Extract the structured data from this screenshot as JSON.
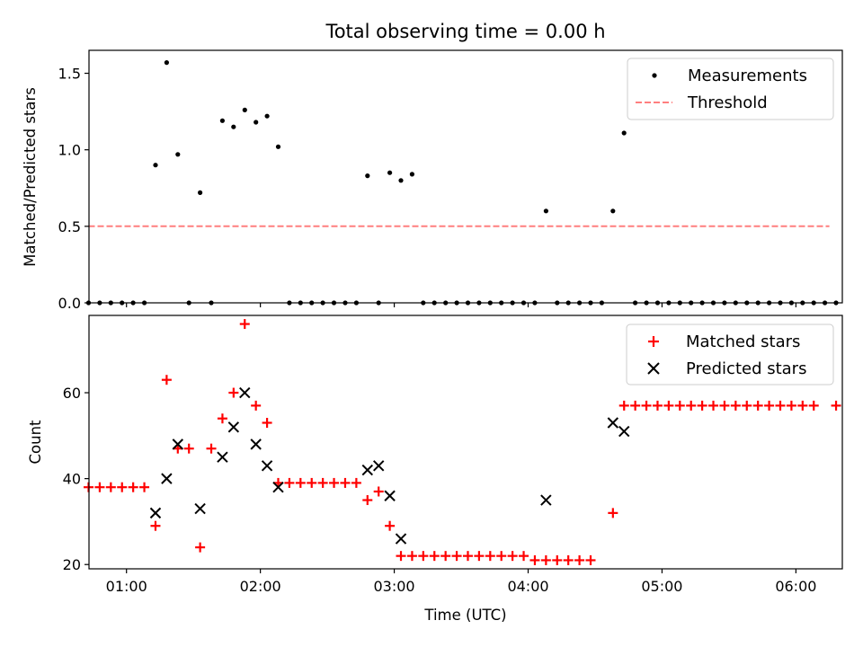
{
  "title": "Total observing time = 0.00 h",
  "xlabel": "Time (UTC)",
  "x_ticks": [
    "01:00",
    "02:00",
    "03:00",
    "04:00",
    "05:00",
    "06:00"
  ],
  "chart_data": [
    {
      "type": "scatter",
      "panel": "top",
      "ylabel": "Matched/Predicted stars",
      "xlim_min": [
        43.2,
        380.8
      ],
      "ylim": [
        0,
        1.65
      ],
      "y_ticks": [
        "0.0",
        "0.5",
        "1.0",
        "1.5"
      ],
      "legend_position": "upper right",
      "series": [
        {
          "name": "Measurements",
          "kind": "points",
          "color": "#000000",
          "points": [
            [
              43,
              0
            ],
            [
              48,
              0
            ],
            [
              53,
              0
            ],
            [
              58,
              0
            ],
            [
              63,
              0
            ],
            [
              68,
              0
            ],
            [
              73,
              0.9
            ],
            [
              78,
              1.57
            ],
            [
              83,
              0.97
            ],
            [
              88,
              0
            ],
            [
              93,
              0.72
            ],
            [
              98,
              0
            ],
            [
              103,
              1.19
            ],
            [
              108,
              1.15
            ],
            [
              113,
              1.26
            ],
            [
              118,
              1.18
            ],
            [
              123,
              1.22
            ],
            [
              128,
              1.02
            ],
            [
              133,
              0
            ],
            [
              138,
              0
            ],
            [
              143,
              0
            ],
            [
              148,
              0
            ],
            [
              153,
              0
            ],
            [
              158,
              0
            ],
            [
              163,
              0
            ],
            [
              168,
              0.83
            ],
            [
              173,
              0
            ],
            [
              178,
              0.85
            ],
            [
              183,
              0.8
            ],
            [
              188,
              0.84
            ],
            [
              193,
              0
            ],
            [
              198,
              0
            ],
            [
              203,
              0
            ],
            [
              208,
              0
            ],
            [
              213,
              0
            ],
            [
              218,
              0
            ],
            [
              223,
              0
            ],
            [
              228,
              0
            ],
            [
              233,
              0
            ],
            [
              238,
              0
            ],
            [
              243,
              0
            ],
            [
              248,
              0.6
            ],
            [
              253,
              0
            ],
            [
              258,
              0
            ],
            [
              263,
              0
            ],
            [
              268,
              0
            ],
            [
              273,
              0
            ],
            [
              278,
              0.6
            ],
            [
              283,
              1.11
            ],
            [
              288,
              0
            ],
            [
              293,
              0
            ],
            [
              298,
              0
            ],
            [
              303,
              0
            ],
            [
              308,
              0
            ],
            [
              313,
              0
            ],
            [
              318,
              0
            ],
            [
              323,
              0
            ],
            [
              328,
              0
            ],
            [
              333,
              0
            ],
            [
              338,
              0
            ],
            [
              343,
              0
            ],
            [
              348,
              0
            ],
            [
              353,
              0
            ],
            [
              358,
              0
            ],
            [
              363,
              0
            ],
            [
              368,
              0
            ],
            [
              373,
              0
            ],
            [
              378,
              0
            ]
          ]
        },
        {
          "name": "Threshold",
          "kind": "dashed-line",
          "color": "#ff7f7f",
          "points": [
            [
              43,
              0.5
            ],
            [
              375,
              0.5
            ]
          ]
        }
      ]
    },
    {
      "type": "scatter",
      "panel": "bottom",
      "ylabel": "Count",
      "xlim_min": [
        43.2,
        380.8
      ],
      "ylim": [
        19,
        78
      ],
      "y_ticks": [
        "20",
        "40",
        "60"
      ],
      "legend_position": "upper right",
      "series": [
        {
          "name": "Matched stars",
          "marker": "+",
          "color": "#ff0000",
          "points": [
            [
              43,
              38
            ],
            [
              48,
              38
            ],
            [
              53,
              38
            ],
            [
              58,
              38
            ],
            [
              63,
              38
            ],
            [
              68,
              38
            ],
            [
              73,
              29
            ],
            [
              78,
              63
            ],
            [
              83,
              47
            ],
            [
              88,
              47
            ],
            [
              93,
              24
            ],
            [
              98,
              47
            ],
            [
              103,
              54
            ],
            [
              108,
              60
            ],
            [
              113,
              76
            ],
            [
              118,
              57
            ],
            [
              123,
              53
            ],
            [
              128,
              39
            ],
            [
              133,
              39
            ],
            [
              138,
              39
            ],
            [
              143,
              39
            ],
            [
              148,
              39
            ],
            [
              153,
              39
            ],
            [
              158,
              39
            ],
            [
              163,
              39
            ],
            [
              168,
              35
            ],
            [
              173,
              37
            ],
            [
              178,
              29
            ],
            [
              183,
              22
            ],
            [
              188,
              22
            ],
            [
              193,
              22
            ],
            [
              198,
              22
            ],
            [
              203,
              22
            ],
            [
              208,
              22
            ],
            [
              213,
              22
            ],
            [
              218,
              22
            ],
            [
              223,
              22
            ],
            [
              228,
              22
            ],
            [
              233,
              22
            ],
            [
              238,
              22
            ],
            [
              243,
              21
            ],
            [
              248,
              21
            ],
            [
              253,
              21
            ],
            [
              258,
              21
            ],
            [
              263,
              21
            ],
            [
              268,
              21
            ],
            [
              278,
              32
            ],
            [
              283,
              57
            ],
            [
              288,
              57
            ],
            [
              293,
              57
            ],
            [
              298,
              57
            ],
            [
              303,
              57
            ],
            [
              308,
              57
            ],
            [
              313,
              57
            ],
            [
              318,
              57
            ],
            [
              323,
              57
            ],
            [
              328,
              57
            ],
            [
              333,
              57
            ],
            [
              338,
              57
            ],
            [
              343,
              57
            ],
            [
              348,
              57
            ],
            [
              353,
              57
            ],
            [
              358,
              57
            ],
            [
              363,
              57
            ],
            [
              368,
              57
            ],
            [
              378,
              57
            ]
          ]
        },
        {
          "name": "Predicted stars",
          "marker": "x",
          "color": "#000000",
          "points": [
            [
              73,
              32
            ],
            [
              78,
              40
            ],
            [
              83,
              48
            ],
            [
              93,
              33
            ],
            [
              103,
              45
            ],
            [
              108,
              52
            ],
            [
              113,
              60
            ],
            [
              118,
              48
            ],
            [
              123,
              43
            ],
            [
              128,
              38
            ],
            [
              168,
              42
            ],
            [
              173,
              43
            ],
            [
              178,
              36
            ],
            [
              183,
              26
            ],
            [
              248,
              35
            ],
            [
              278,
              53
            ],
            [
              283,
              51
            ]
          ]
        }
      ]
    }
  ]
}
